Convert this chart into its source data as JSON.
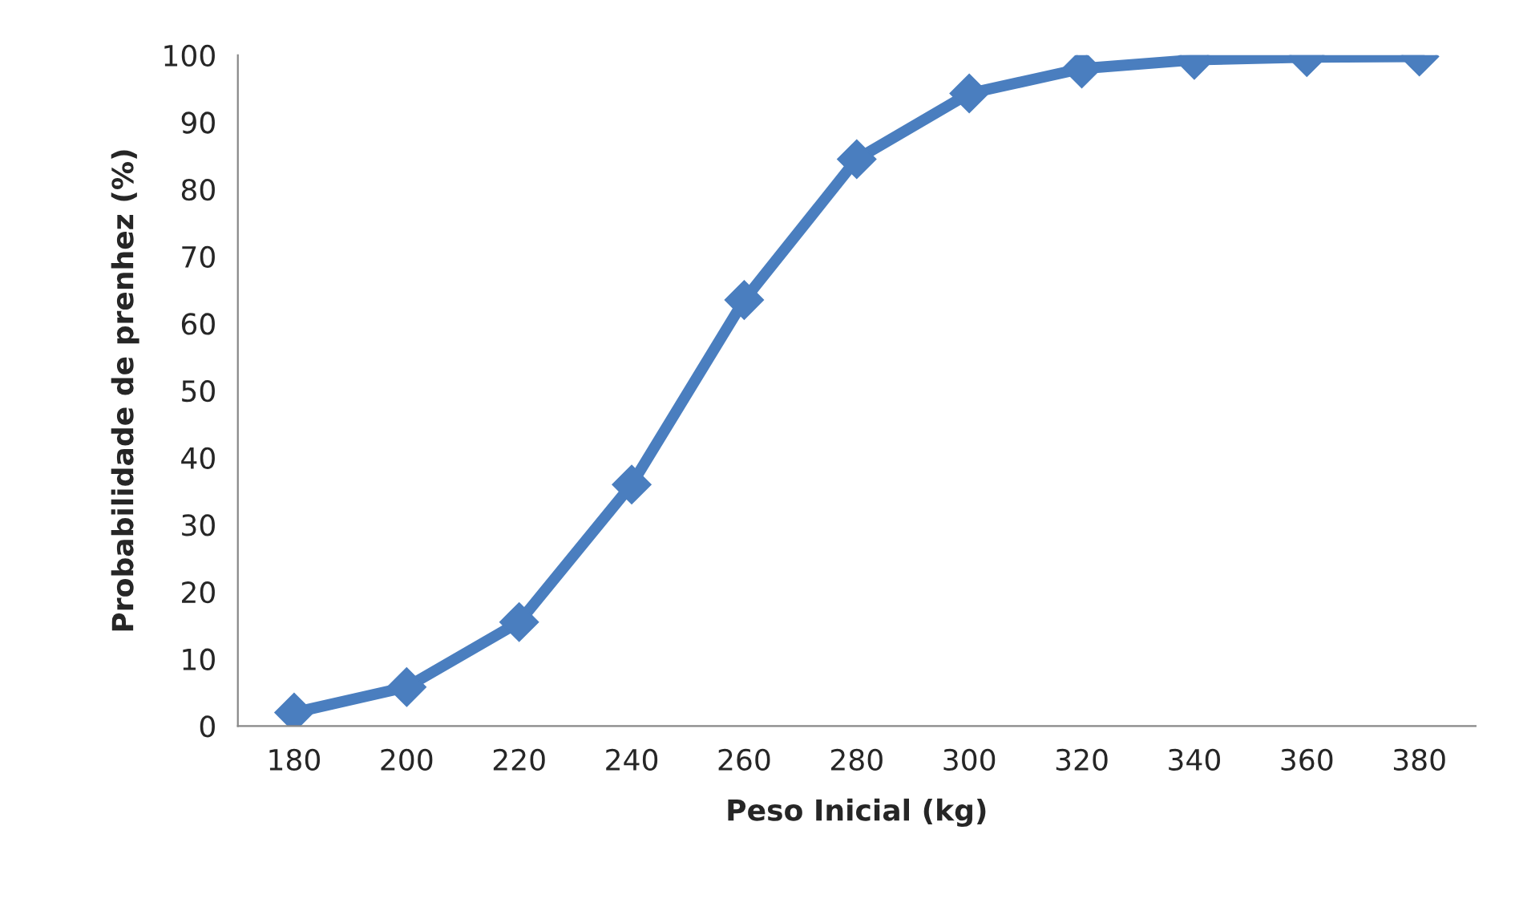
{
  "chart_data": {
    "type": "line",
    "xlabel": "Peso Inicial (kg)",
    "ylabel": "Probabilidade de prenhez (%)",
    "categories": [
      "180",
      "200",
      "220",
      "240",
      "260",
      "280",
      "300",
      "320",
      "340",
      "360",
      "380"
    ],
    "series": [
      {
        "color": "#4a7ebf",
        "values": [
          2,
          5.8,
          15.5,
          36,
          63.5,
          84.5,
          94.3,
          98,
          99.3,
          99.7,
          99.8
        ]
      }
    ],
    "ylim": [
      0,
      100
    ],
    "yticks": [
      0,
      10,
      20,
      30,
      40,
      50,
      60,
      70,
      80,
      90,
      100
    ],
    "grid": false,
    "legend": false,
    "marker": "diamond",
    "line_style": "solid"
  }
}
